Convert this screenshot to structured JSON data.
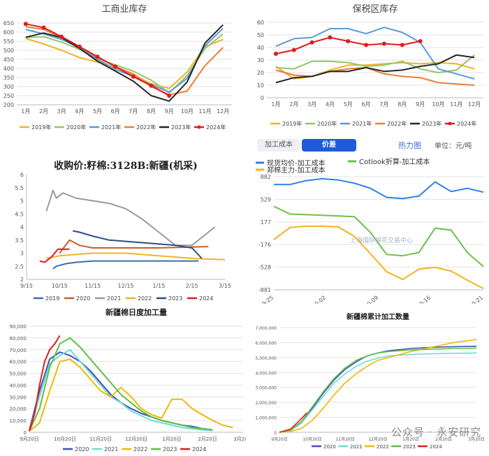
{
  "chart_data": [
    {
      "id": "p1",
      "type": "line",
      "title": "工商业库存",
      "categories": [
        "1月",
        "2月",
        "3月",
        "4月",
        "5月",
        "6月",
        "7月",
        "8月",
        "9月",
        "10月",
        "11月",
        "12月"
      ],
      "ylim": [
        200,
        650
      ],
      "yticks": [
        200,
        250,
        300,
        350,
        400,
        450,
        500,
        550,
        600,
        650
      ],
      "legend": "bottom",
      "series": [
        {
          "name": "2019年",
          "color": "#f0b323",
          "marker": false,
          "values": [
            565,
            535,
            500,
            460,
            435,
            405,
            365,
            315,
            290,
            380,
            520,
            560
          ]
        },
        {
          "name": "2020年",
          "color": "#92c56e",
          "marker": false,
          "values": [
            570,
            575,
            545,
            505,
            455,
            420,
            385,
            335,
            265,
            360,
            510,
            590
          ]
        },
        {
          "name": "2021年",
          "color": "#5b9bd5",
          "marker": false,
          "values": [
            615,
            590,
            560,
            515,
            450,
            395,
            355,
            310,
            270,
            345,
            525,
            620
          ]
        },
        {
          "name": "2022年",
          "color": "#ed7d31",
          "marker": false,
          "values": [
            630,
            615,
            570,
            520,
            460,
            410,
            370,
            300,
            255,
            275,
            415,
            515
          ]
        },
        {
          "name": "2023年",
          "color": "#262626",
          "marker": false,
          "values": [
            572,
            595,
            570,
            510,
            440,
            385,
            330,
            250,
            220,
            325,
            540,
            640
          ]
        },
        {
          "name": "2024年",
          "color": "#e31a1c",
          "marker": true,
          "values": [
            645,
            625,
            575,
            520,
            465,
            410,
            355,
            305,
            250,
            null,
            null,
            null
          ]
        }
      ]
    },
    {
      "id": "p2",
      "type": "line",
      "title": "保税区库存",
      "categories": [
        "1月",
        "2月",
        "3月",
        "4月",
        "5月",
        "6月",
        "7月",
        "8月",
        "9月",
        "10月",
        "11月",
        "12月"
      ],
      "ylim": [
        0,
        60
      ],
      "yticks": [
        0,
        10,
        20,
        30,
        40,
        50,
        60
      ],
      "legend": "bottom",
      "series": [
        {
          "name": "2019年",
          "color": "#f0b323",
          "marker": false,
          "values": [
            25,
            15,
            17,
            22,
            26,
            26,
            27,
            28,
            27,
            28,
            27,
            23
          ]
        },
        {
          "name": "2020年",
          "color": "#92c56e",
          "marker": false,
          "values": [
            24,
            23,
            29,
            29,
            28,
            25,
            26,
            29,
            23,
            20,
            22,
            34
          ]
        },
        {
          "name": "2021年",
          "color": "#5b9bd5",
          "marker": false,
          "values": [
            41,
            47,
            48,
            55,
            55,
            51,
            56,
            52,
            44,
            23,
            19,
            15
          ]
        },
        {
          "name": "2022年",
          "color": "#ed7d31",
          "marker": false,
          "values": [
            22,
            18,
            17,
            21,
            23,
            24,
            19,
            17,
            16,
            12,
            11,
            10
          ]
        },
        {
          "name": "2023年",
          "color": "#262626",
          "marker": false,
          "values": [
            12,
            16,
            17,
            21,
            21,
            24,
            21,
            22,
            25,
            27,
            34,
            32
          ]
        },
        {
          "name": "2024年",
          "color": "#e31a1c",
          "marker": true,
          "values": [
            35,
            38,
            44,
            48,
            45,
            42,
            43,
            42,
            45,
            null,
            null,
            null
          ]
        }
      ]
    },
    {
      "id": "p3",
      "type": "line",
      "title": "收购价:籽棉:3128B:新疆(机采)",
      "x_ticks": [
        "9/15",
        "10/15",
        "11/15",
        "12/15",
        "1/15",
        "2/15",
        "3/15"
      ],
      "ylim": [
        2,
        6
      ],
      "yticks": [
        2,
        2.5,
        3,
        3.5,
        4,
        4.5,
        5,
        5.5,
        6
      ],
      "legend": "bottom",
      "series": [
        {
          "name": "2019",
          "color": "#3a6fb5",
          "x": [
            0.8,
            0.9,
            1.2,
            1.5,
            2.0,
            3.0,
            4.0,
            5.2
          ],
          "y": [
            2.4,
            2.5,
            2.6,
            2.65,
            2.7,
            2.7,
            2.7,
            2.7
          ]
        },
        {
          "name": "2020",
          "color": "#c0602b",
          "x": [
            1.0,
            1.3,
            1.6,
            2.0,
            3.0,
            4.0,
            5.5
          ],
          "y": [
            3.0,
            3.5,
            3.3,
            3.2,
            3.2,
            3.2,
            3.25
          ]
        },
        {
          "name": "2021",
          "color": "#9a9a9a",
          "x": [
            0.6,
            0.8,
            0.9,
            1.1,
            1.3,
            1.5,
            2.0,
            2.5,
            3.0,
            3.5,
            3.8,
            4.2,
            4.5,
            5.0,
            5.5,
            5.7
          ],
          "y": [
            4.6,
            5.4,
            5.1,
            5.3,
            5.2,
            5.1,
            5.0,
            4.9,
            4.7,
            4.3,
            4.0,
            3.6,
            3.3,
            3.3,
            3.8,
            4.0
          ]
        },
        {
          "name": "2022",
          "color": "#f0b323",
          "x": [
            0.6,
            1.0,
            1.5,
            2.0,
            3.0,
            4.0,
            5.0,
            6.0
          ],
          "y": [
            2.8,
            2.9,
            2.95,
            3.0,
            3.0,
            2.9,
            2.8,
            2.75
          ]
        },
        {
          "name": "2023",
          "color": "#2a4d8c",
          "x": [
            1.4,
            1.6,
            2.0,
            2.5,
            3.0,
            3.5,
            4.0,
            4.5,
            5.0,
            5.3
          ],
          "y": [
            3.85,
            3.8,
            3.65,
            3.5,
            3.45,
            3.4,
            3.35,
            3.3,
            3.2,
            2.8
          ]
        },
        {
          "name": "2024",
          "color": "#e31a1c",
          "x": [
            0.4,
            0.55,
            0.75,
            0.95,
            1.3
          ],
          "y": [
            2.7,
            2.65,
            2.85,
            3.15,
            3.15
          ]
        }
      ]
    },
    {
      "id": "p4",
      "type": "line",
      "tabs": [
        "加工成本",
        "价差"
      ],
      "active_tab": "价差",
      "heatmap_link": "热力图",
      "unit": "单位：元/吨",
      "legend": [
        {
          "name": "现货均价-加工成本",
          "color": "#2f80ed"
        },
        {
          "name": "Cotlook折算-加工成本",
          "color": "#6cc24a"
        },
        {
          "name": "郑棉主力-加工成本",
          "color": "#f5b31b"
        }
      ],
      "ylim": [
        -881,
        882
      ],
      "yticks": [
        882,
        529,
        177,
        -176,
        -528,
        -881
      ],
      "x_ticks": [
        "09-25",
        "10-02",
        "10-09",
        "10-16",
        "10-21"
      ],
      "watermark": "上海国际棉花交易中心",
      "series": [
        {
          "name": "现货均价-加工成本",
          "color": "#2f80ed",
          "x": [
            0,
            2,
            4,
            6,
            8,
            10,
            12,
            14,
            16,
            18,
            20,
            22,
            24,
            26
          ],
          "y": [
            760,
            760,
            820,
            850,
            830,
            780,
            700,
            560,
            540,
            580,
            800,
            650,
            700,
            640
          ]
        },
        {
          "name": "Cotlook折算-加工成本",
          "color": "#6cc24a",
          "x": [
            0,
            2,
            4,
            6,
            8,
            10,
            12,
            14,
            16,
            18,
            20,
            22,
            24,
            26
          ],
          "y": [
            420,
            300,
            290,
            280,
            270,
            260,
            10,
            -330,
            -350,
            -300,
            80,
            50,
            -300,
            -520
          ]
        },
        {
          "name": "郑棉主力-加工成本",
          "color": "#f5b31b",
          "x": [
            0,
            2,
            4,
            6,
            8,
            10,
            12,
            14,
            16,
            18,
            20,
            22,
            24,
            26
          ],
          "y": [
            -100,
            90,
            110,
            110,
            100,
            -50,
            -320,
            -600,
            -720,
            -560,
            -530,
            -590,
            -730,
            -860
          ]
        }
      ]
    },
    {
      "id": "p5",
      "type": "line",
      "title": "新疆棉日度加工量",
      "x_ticks": [
        "9月20日",
        "10月20日",
        "11月20日",
        "12月20日",
        "1月20日",
        "2月20日",
        "3月20日"
      ],
      "ylim": [
        0,
        90000
      ],
      "yticks": [
        0,
        10000,
        20000,
        30000,
        40000,
        50000,
        60000,
        70000,
        80000,
        90000
      ],
      "ytick_labels": [
        "0",
        "10,000",
        "20,000",
        "30,000",
        "40,000",
        "50,000",
        "60,000",
        "70,000",
        "80,000",
        "90,000"
      ],
      "legend": "bottom",
      "series": [
        {
          "name": "2020",
          "color": "#3f51b5",
          "x": [
            0,
            10,
            20,
            30,
            40,
            50,
            60,
            70,
            80,
            90,
            100,
            110,
            120,
            130,
            140,
            150,
            160,
            170,
            180
          ],
          "y": [
            2000,
            35000,
            62000,
            68000,
            65000,
            60000,
            52000,
            42000,
            32000,
            25000,
            20000,
            16000,
            13000,
            10000,
            8000,
            6000,
            5000,
            3000,
            2000
          ]
        },
        {
          "name": "2021",
          "color": "#6edcd6",
          "x": [
            0,
            10,
            20,
            30,
            40,
            50,
            60,
            70,
            80,
            90,
            100,
            110,
            120,
            130,
            140,
            150,
            160,
            170,
            180
          ],
          "y": [
            1000,
            30000,
            58000,
            65000,
            70000,
            60000,
            50000,
            40000,
            30000,
            25000,
            18000,
            14000,
            10000,
            8000,
            6000,
            4000,
            3000,
            2000,
            1500
          ]
        },
        {
          "name": "2022",
          "color": "#f2b800",
          "x": [
            0,
            10,
            20,
            30,
            40,
            50,
            60,
            70,
            80,
            90,
            100,
            110,
            120,
            130,
            140,
            150,
            160,
            170,
            180,
            190,
            200
          ],
          "y": [
            1000,
            8000,
            35000,
            60000,
            62000,
            55000,
            45000,
            35000,
            30000,
            38000,
            30000,
            20000,
            15000,
            12000,
            28000,
            28000,
            20000,
            15000,
            10000,
            6000,
            4000
          ]
        },
        {
          "name": "2023",
          "color": "#5fbf43",
          "x": [
            0,
            10,
            20,
            30,
            40,
            50,
            60,
            70,
            80,
            90,
            100,
            110,
            120,
            130,
            140,
            150,
            160,
            170,
            180
          ],
          "y": [
            1000,
            20000,
            55000,
            75000,
            80000,
            72000,
            62000,
            52000,
            42000,
            32000,
            25000,
            18000,
            13000,
            10000,
            8000,
            6000,
            4000,
            3000,
            2000
          ]
        },
        {
          "name": "2024",
          "color": "#e31a1c",
          "x": [
            0,
            5,
            10,
            15,
            20,
            25,
            30
          ],
          "y": [
            1000,
            15000,
            40000,
            60000,
            70000,
            75000,
            82000
          ]
        }
      ]
    },
    {
      "id": "p6",
      "type": "line",
      "title": "新疆棉累计加工数量",
      "x_ticks": [
        "9月20日",
        "10月20日",
        "11月20日",
        "12月20日",
        "1月20日",
        "2月20日",
        "3月20日"
      ],
      "ylim": [
        0,
        7000000
      ],
      "yticks": [
        0,
        1000000,
        2000000,
        3000000,
        4000000,
        5000000,
        6000000,
        7000000
      ],
      "ytick_labels": [
        "0",
        "1,000,000",
        "2,000,000",
        "3,000,000",
        "4,000,000",
        "5,000,000",
        "6,000,000",
        "7,000,000"
      ],
      "legend": "bottom",
      "series": [
        {
          "name": "2020",
          "color": "#3f51b5",
          "x": [
            0,
            10,
            20,
            30,
            40,
            50,
            60,
            70,
            80,
            90,
            100,
            120,
            140,
            160,
            180
          ],
          "y": [
            0,
            150000,
            700000,
            1600000,
            2600000,
            3500000,
            4200000,
            4700000,
            5100000,
            5300000,
            5450000,
            5600000,
            5680000,
            5720000,
            5750000
          ]
        },
        {
          "name": "2021",
          "color": "#6edcd6",
          "x": [
            0,
            10,
            20,
            30,
            40,
            50,
            60,
            70,
            80,
            90,
            100,
            120,
            140,
            160,
            180
          ],
          "y": [
            0,
            100000,
            600000,
            1500000,
            2400000,
            3300000,
            3900000,
            4400000,
            4750000,
            4950000,
            5100000,
            5200000,
            5250000,
            5280000,
            5300000
          ]
        },
        {
          "name": "2022",
          "color": "#f2b800",
          "x": [
            0,
            10,
            20,
            30,
            40,
            50,
            60,
            70,
            80,
            90,
            100,
            120,
            140,
            160,
            180
          ],
          "y": [
            0,
            50000,
            250000,
            800000,
            1600000,
            2500000,
            3300000,
            3900000,
            4400000,
            4800000,
            5000000,
            5400000,
            5700000,
            6000000,
            6200000
          ]
        },
        {
          "name": "2023",
          "color": "#5fbf43",
          "x": [
            0,
            10,
            20,
            30,
            40,
            50,
            60,
            70,
            80,
            90,
            100,
            120,
            140,
            160,
            180
          ],
          "y": [
            0,
            150000,
            700000,
            1700000,
            2700000,
            3600000,
            4300000,
            4800000,
            5100000,
            5300000,
            5400000,
            5500000,
            5550000,
            5600000,
            5620000
          ]
        },
        {
          "name": "2024",
          "color": "#e31a1c",
          "x": [
            0,
            10,
            20,
            25
          ],
          "y": [
            0,
            200000,
            900000,
            1300000
          ]
        }
      ]
    }
  ],
  "footer": {
    "watermark": "公众号 · 永安研究"
  }
}
